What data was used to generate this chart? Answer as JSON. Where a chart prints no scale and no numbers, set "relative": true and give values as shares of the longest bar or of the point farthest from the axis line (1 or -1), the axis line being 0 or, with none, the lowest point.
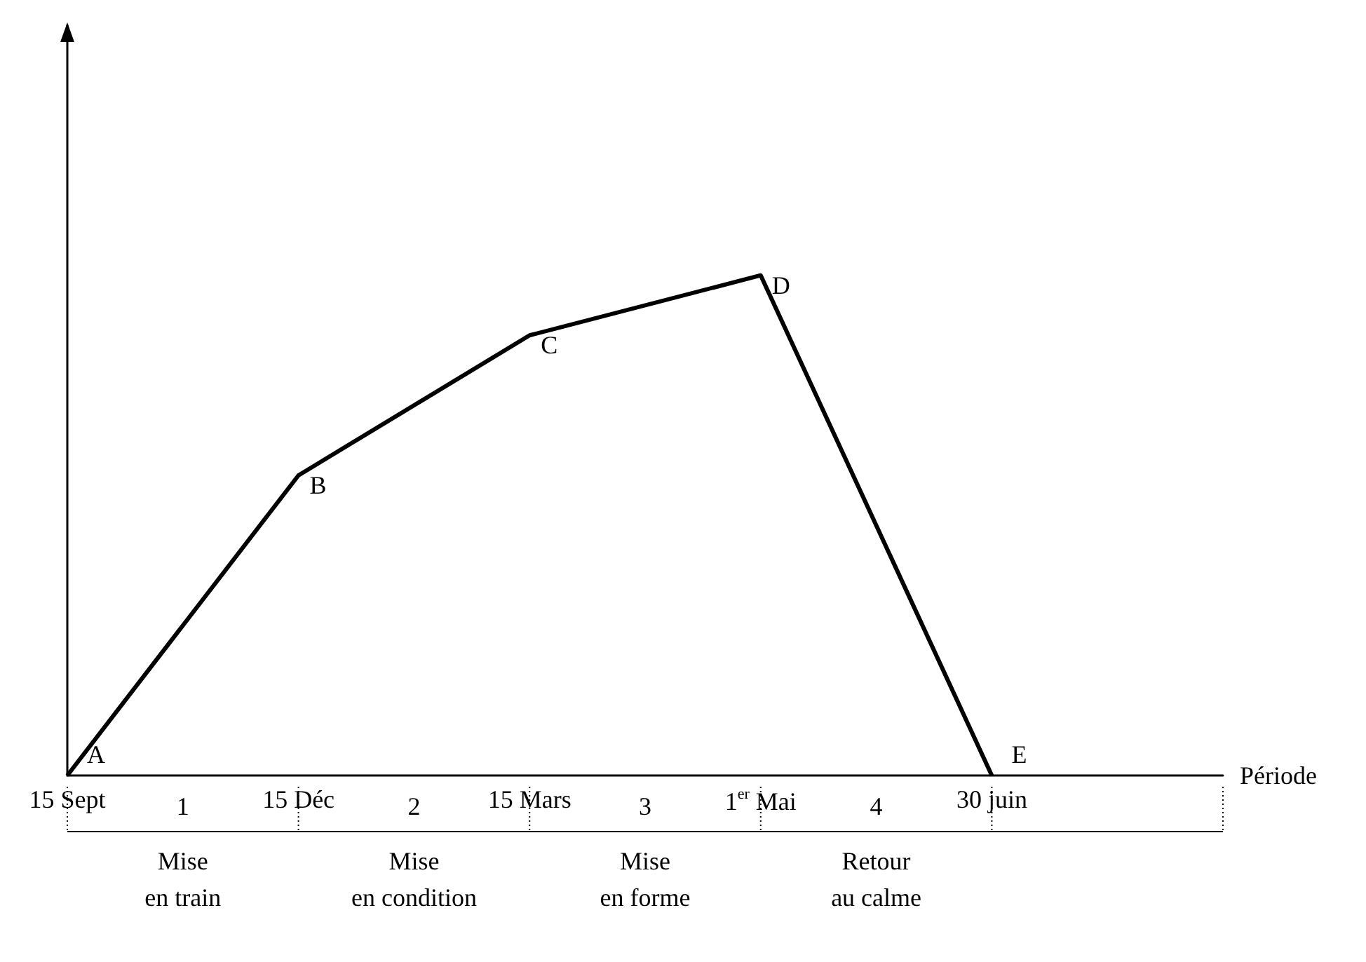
{
  "chart_data": {
    "type": "line",
    "relative": true,
    "xlabel": "Période",
    "categories": [
      "15 Sept",
      "15 Déc",
      "15 Mars",
      "1$^{er}$ Mai",
      "30 juin",
      null
    ],
    "series": [
      {
        "color": "#000000",
        "values": [
          0,
          0.6,
          0.88,
          1,
          0,
          null
        ]
      }
    ],
    "annotations": [
      {
        "text": "A",
        "x": "15 Sept",
        "y": 0
      },
      {
        "text": "B",
        "x": "15 Déc",
        "y": 0.6
      },
      {
        "text": "C",
        "x": "15 Mars",
        "y": 0.88
      },
      {
        "text": "D",
        "x": "1$^{er}$ Mai",
        "y": 1
      },
      {
        "text": "E",
        "x": "30 juin",
        "y": 0
      },
      "1",
      "Mise\nen train",
      "2",
      "Mise\nen condition",
      "3",
      "Mise\nen forme",
      "4",
      "Retour\nau calme"
    ],
    "grid": false,
    "marker": "none",
    "line_style": "solid",
    "tick_labels": "x"
  }
}
